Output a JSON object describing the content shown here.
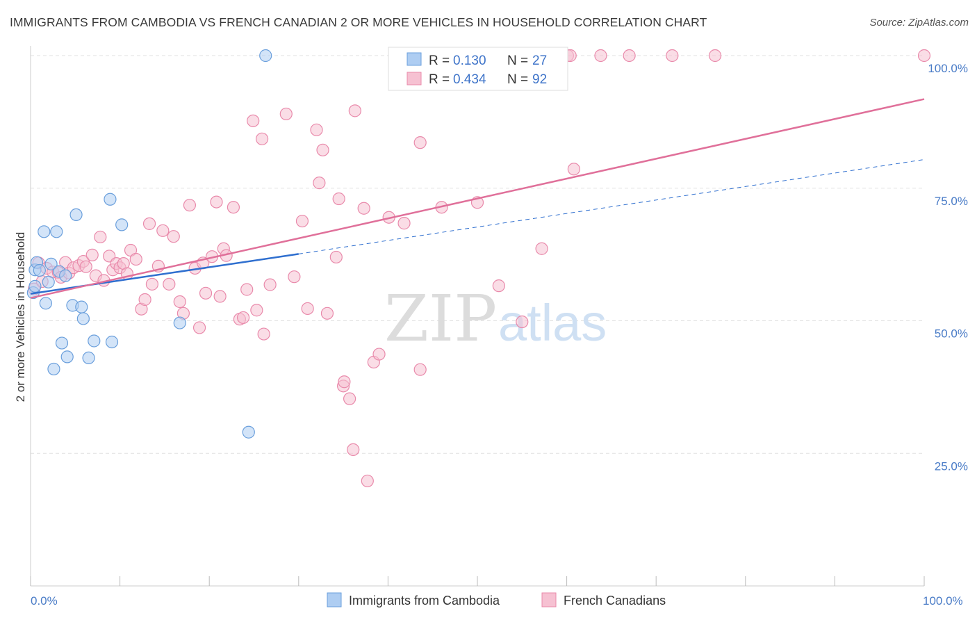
{
  "title": "IMMIGRANTS FROM CAMBODIA VS FRENCH CANADIAN 2 OR MORE VEHICLES IN HOUSEHOLD CORRELATION CHART",
  "source": "Source: ZipAtlas.com",
  "watermark": {
    "zip": "ZIP",
    "atlas": "atlas"
  },
  "colors": {
    "blue_fill": "#aecdf2",
    "blue_stroke": "#6a9fdc",
    "blue_line": "#2f6fcf",
    "pink_fill": "#f6c1d2",
    "pink_stroke": "#e98aab",
    "pink_line": "#e0709a",
    "grid": "#e0e0e0",
    "tick_text": "#4a7cc7"
  },
  "legend_top": [
    {
      "r_label": "R =",
      "r_value": "0.130",
      "n_label": "N =",
      "n_value": "27"
    },
    {
      "r_label": "R =",
      "r_value": "0.434",
      "n_label": "N =",
      "n_value": "92"
    }
  ],
  "chart_data": {
    "type": "scatter",
    "title": "IMMIGRANTS FROM CAMBODIA VS FRENCH CANADIAN 2 OR MORE VEHICLES IN HOUSEHOLD CORRELATION CHART",
    "xlabel": "",
    "ylabel": "2 or more Vehicles in Household",
    "xlim": [
      0,
      100
    ],
    "ylim": [
      0,
      100
    ],
    "x_tick_labels": [
      "0.0%",
      "100.0%"
    ],
    "y_tick_labels": [
      "25.0%",
      "50.0%",
      "75.0%",
      "100.0%"
    ],
    "y_ticks": [
      25,
      50,
      75,
      100
    ],
    "grid": true,
    "legend_position": "bottom",
    "series": [
      {
        "name": "Immigrants from Cambodia",
        "color": "#6a9fdc",
        "points": [
          [
            0.3,
            55.3
          ],
          [
            0.5,
            56.5
          ],
          [
            0.5,
            59.6
          ],
          [
            0.7,
            61.0
          ],
          [
            1.0,
            59.5
          ],
          [
            1.5,
            66.8
          ],
          [
            1.7,
            53.3
          ],
          [
            2.0,
            57.3
          ],
          [
            2.3,
            60.7
          ],
          [
            2.6,
            40.9
          ],
          [
            2.9,
            66.8
          ],
          [
            3.2,
            59.3
          ],
          [
            3.5,
            45.8
          ],
          [
            3.9,
            58.5
          ],
          [
            4.1,
            43.2
          ],
          [
            4.7,
            52.9
          ],
          [
            5.7,
            52.6
          ],
          [
            5.9,
            50.4
          ],
          [
            6.5,
            43.0
          ],
          [
            7.1,
            46.2
          ],
          [
            8.9,
            72.9
          ],
          [
            9.1,
            46.0
          ],
          [
            10.2,
            68.1
          ],
          [
            5.1,
            70.0
          ],
          [
            16.7,
            49.6
          ],
          [
            24.4,
            29.0
          ],
          [
            26.3,
            100.0
          ]
        ],
        "trend": {
          "x": [
            0,
            30
          ],
          "y": [
            55.1,
            62.6
          ],
          "extended_to": [
            100,
            80.4
          ]
        }
      },
      {
        "name": "French Canadians",
        "color": "#e98aab",
        "points": [
          [
            0.4,
            56.0
          ],
          [
            0.9,
            60.9
          ],
          [
            1.3,
            57.4
          ],
          [
            1.8,
            59.9
          ],
          [
            2.5,
            59.2
          ],
          [
            3.1,
            59.1
          ],
          [
            3.4,
            58.2
          ],
          [
            3.9,
            61.0
          ],
          [
            4.3,
            59.0
          ],
          [
            4.8,
            60.0
          ],
          [
            5.4,
            60.4
          ],
          [
            5.9,
            61.2
          ],
          [
            6.2,
            60.2
          ],
          [
            6.9,
            62.4
          ],
          [
            7.3,
            58.5
          ],
          [
            7.8,
            65.8
          ],
          [
            8.2,
            57.6
          ],
          [
            8.8,
            62.2
          ],
          [
            9.2,
            59.6
          ],
          [
            9.6,
            60.8
          ],
          [
            10.0,
            60.0
          ],
          [
            10.4,
            60.8
          ],
          [
            10.8,
            58.9
          ],
          [
            11.2,
            63.3
          ],
          [
            11.8,
            61.6
          ],
          [
            12.4,
            52.2
          ],
          [
            12.8,
            54.0
          ],
          [
            13.3,
            68.3
          ],
          [
            13.6,
            56.9
          ],
          [
            14.3,
            60.3
          ],
          [
            14.8,
            67.0
          ],
          [
            15.5,
            56.9
          ],
          [
            16.0,
            65.9
          ],
          [
            16.7,
            53.6
          ],
          [
            17.1,
            51.4
          ],
          [
            17.8,
            71.8
          ],
          [
            18.4,
            59.9
          ],
          [
            18.9,
            48.7
          ],
          [
            19.3,
            60.9
          ],
          [
            19.6,
            55.2
          ],
          [
            20.3,
            62.1
          ],
          [
            20.8,
            72.4
          ],
          [
            21.2,
            54.6
          ],
          [
            21.6,
            63.6
          ],
          [
            21.9,
            62.3
          ],
          [
            22.7,
            71.4
          ],
          [
            23.4,
            50.3
          ],
          [
            23.8,
            50.6
          ],
          [
            24.2,
            55.9
          ],
          [
            24.9,
            87.7
          ],
          [
            25.3,
            52.0
          ],
          [
            25.9,
            84.3
          ],
          [
            26.1,
            47.5
          ],
          [
            26.8,
            56.8
          ],
          [
            28.6,
            89.0
          ],
          [
            29.5,
            58.3
          ],
          [
            30.4,
            68.8
          ],
          [
            31.0,
            52.3
          ],
          [
            32.0,
            86.0
          ],
          [
            32.3,
            76.0
          ],
          [
            32.7,
            82.2
          ],
          [
            33.2,
            51.4
          ],
          [
            34.5,
            73.0
          ],
          [
            35.0,
            37.7
          ],
          [
            35.1,
            38.5
          ],
          [
            35.7,
            35.3
          ],
          [
            36.1,
            25.7
          ],
          [
            36.3,
            89.6
          ],
          [
            37.3,
            71.2
          ],
          [
            37.7,
            19.8
          ],
          [
            38.4,
            42.2
          ],
          [
            39.0,
            43.7
          ],
          [
            40.1,
            69.5
          ],
          [
            41.8,
            68.4
          ],
          [
            43.6,
            83.6
          ],
          [
            43.6,
            40.8
          ],
          [
            45.2,
            100.0
          ],
          [
            46.0,
            71.4
          ],
          [
            50.0,
            72.3
          ],
          [
            52.4,
            56.6
          ],
          [
            55.0,
            49.8
          ],
          [
            57.2,
            63.6
          ],
          [
            59.3,
            100.0
          ],
          [
            60.1,
            100.0
          ],
          [
            60.4,
            100.0
          ],
          [
            60.8,
            78.6
          ],
          [
            63.8,
            100.0
          ],
          [
            67.0,
            100.0
          ],
          [
            71.8,
            100.0
          ],
          [
            76.6,
            100.0
          ],
          [
            100.0,
            100.0
          ],
          [
            34.2,
            62.0
          ]
        ],
        "trend": {
          "x": [
            0,
            100
          ],
          "y": [
            54.3,
            91.8
          ]
        }
      }
    ]
  },
  "bottom_legend": [
    "Immigrants from Cambodia",
    "French Canadians"
  ]
}
